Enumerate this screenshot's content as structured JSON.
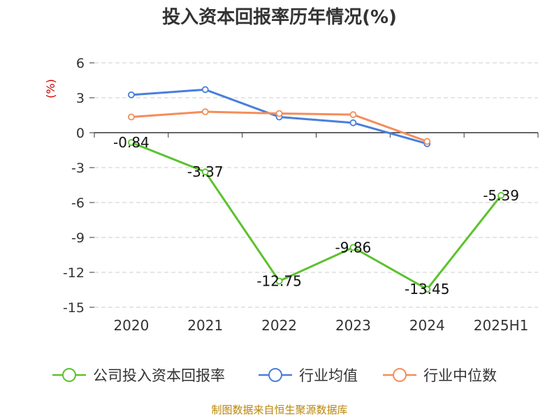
{
  "chart_data": {
    "type": "line",
    "title": "投入资本回报率历年情况(%)",
    "ylabel": "(%)",
    "categories": [
      "2020",
      "2021",
      "2022",
      "2023",
      "2024",
      "2025H1"
    ],
    "ylim": [
      -15,
      6
    ],
    "yticks": [
      6,
      3,
      0,
      -3,
      -6,
      -9,
      -12,
      -15
    ],
    "grid": "horizontal-dashed",
    "legend_position": "bottom",
    "series": [
      {
        "name": "公司投入资本回报率",
        "color": "#5cc22e",
        "values": [
          -0.84,
          -3.37,
          -12.75,
          -9.86,
          -13.45,
          -5.39
        ],
        "labels": [
          "-0.84",
          "-3.37",
          "-12.75",
          "-9.86",
          "-13.45",
          "-5.39"
        ]
      },
      {
        "name": "行业均值",
        "color": "#4a7fdc",
        "values": [
          3.25,
          3.7,
          1.35,
          0.85,
          -0.95,
          null
        ]
      },
      {
        "name": "行业中位数",
        "color": "#f58d5a",
        "values": [
          1.35,
          1.8,
          1.65,
          1.55,
          -0.75,
          null
        ]
      }
    ]
  },
  "source": "制图数据来自恒生聚源数据库"
}
